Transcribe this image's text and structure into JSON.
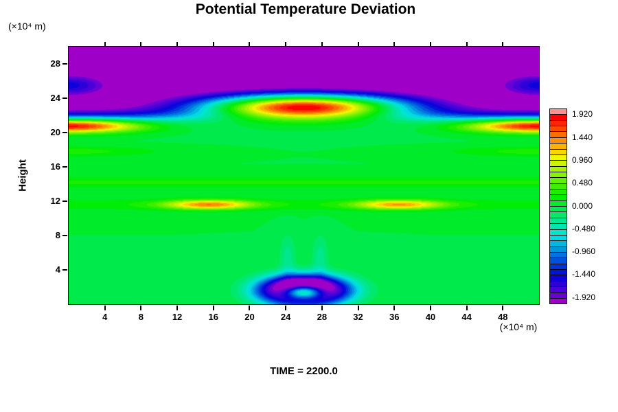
{
  "title": "Potential Temperature Deviation",
  "time_label": "TIME = 2200.0",
  "axes": {
    "y_label": "Height",
    "y_unit": "(×10⁴ m)",
    "x_unit": "(×10⁴ m)",
    "x_ticks": [
      4,
      8,
      12,
      16,
      20,
      24,
      28,
      32,
      36,
      40,
      44,
      48
    ],
    "y_ticks": [
      4,
      8,
      12,
      16,
      20,
      24,
      28
    ]
  },
  "colorbar": {
    "labels": [
      "1.920",
      "1.440",
      "0.960",
      "0.480",
      "0.000",
      "-0.480",
      "-0.960",
      "-1.440",
      "-1.920"
    ]
  },
  "chart_data": {
    "type": "heatmap",
    "title": "Potential Temperature Deviation",
    "xlabel": "(×10⁴ m)",
    "ylabel": "Height (×10⁴ m)",
    "x_range": [
      0,
      52
    ],
    "y_range": [
      0,
      30
    ],
    "value_range": [
      -1.92,
      1.92
    ],
    "contour_interval": 0.12,
    "colorbar_tick_step": 0.48,
    "time": 2200.0,
    "grid": false,
    "legend_position": "colorbar-right",
    "colormap": {
      "min": -1.92,
      "max": 1.92,
      "step": 0.12,
      "hue_start": 270,
      "hue_end": 0,
      "light_start": 42,
      "light_end": 50,
      "sat": 100,
      "below_color": "#9e00c7",
      "above_color": "#ff9191"
    },
    "features": [
      {
        "kind": "sigmoid_z",
        "z0": 21.8,
        "w": 0.5,
        "amp": -2.35
      },
      {
        "kind": "gauss",
        "x0": 26,
        "z0": 23.0,
        "sx": 11,
        "sz": 1.45,
        "amp": 4.05
      },
      {
        "kind": "gauss",
        "x0": 0,
        "z0": 20.8,
        "sx": 8,
        "sz": 0.8,
        "amp": 2.1
      },
      {
        "kind": "gauss",
        "x0": 52,
        "z0": 20.8,
        "sx": 8,
        "sz": 0.8,
        "amp": 2.1
      },
      {
        "kind": "gauss",
        "x0": 0,
        "z0": 25.5,
        "sx": 4.5,
        "sz": 1.3,
        "amp": 0.85
      },
      {
        "kind": "gauss",
        "x0": 52,
        "z0": 25.5,
        "sx": 4.5,
        "sz": 1.3,
        "amp": 0.85
      },
      {
        "kind": "gauss",
        "x0": 15.5,
        "z0": 11.6,
        "sx": 4.8,
        "sz": 0.55,
        "amp": 1.25
      },
      {
        "kind": "gauss",
        "x0": 36.5,
        "z0": 11.6,
        "sx": 4.8,
        "sz": 0.55,
        "amp": 1.15
      },
      {
        "kind": "gauss_z",
        "z0": 11.6,
        "sz": 0.7,
        "amp": 0.2
      },
      {
        "kind": "gauss_z",
        "z0": 14.2,
        "sz": 0.7,
        "amp": 0.26
      },
      {
        "kind": "gauss",
        "x0": 0,
        "z0": 17.8,
        "sx": 10,
        "sz": 0.6,
        "amp": 0.3
      },
      {
        "kind": "gauss",
        "x0": 52,
        "z0": 17.8,
        "sx": 10,
        "sz": 0.6,
        "amp": 0.3
      },
      {
        "kind": "gauss",
        "x0": 26,
        "z0": 1.6,
        "sx": 4.2,
        "sz": 1.5,
        "amp": -5.2
      },
      {
        "kind": "gauss",
        "x0": 26,
        "z0": 1.45,
        "sx": 2.6,
        "sz": 0.95,
        "amp": 4.6
      },
      {
        "kind": "gauss",
        "x0": 24.2,
        "z0": 5.5,
        "sx": 0.9,
        "sz": 2.6,
        "amp": -0.3
      },
      {
        "kind": "gauss",
        "x0": 27.8,
        "z0": 5.5,
        "sx": 0.9,
        "sz": 2.6,
        "amp": -0.3
      }
    ]
  }
}
